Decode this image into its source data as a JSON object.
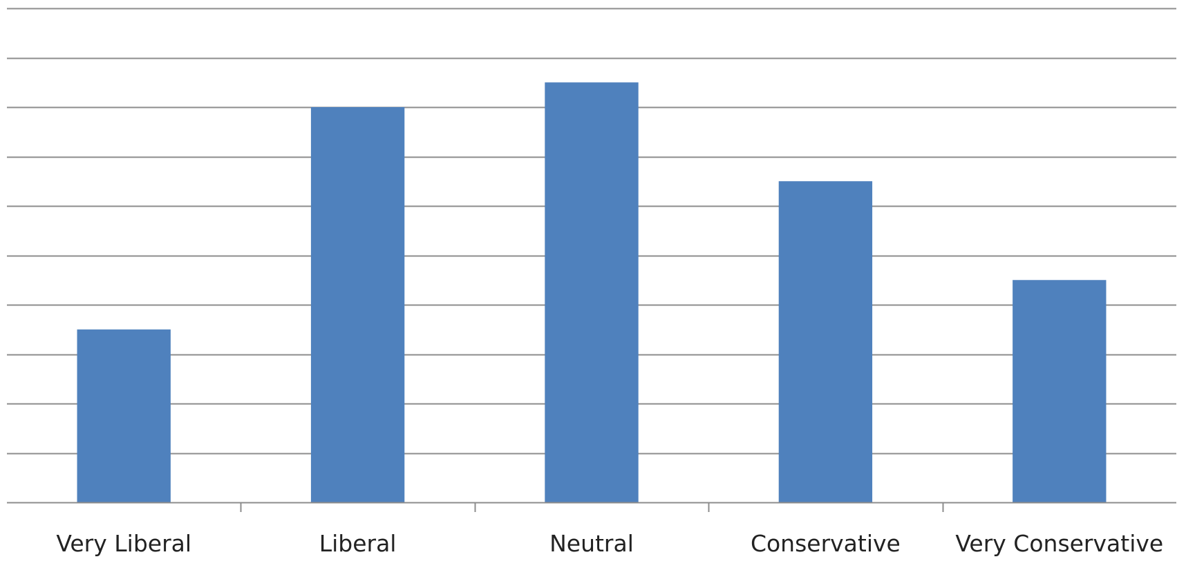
{
  "chart_data": {
    "type": "bar",
    "categories": [
      "Very Liberal",
      "Liberal",
      "Neutral",
      "Conservative",
      "Very Conservative"
    ],
    "values": [
      3.5,
      8.0,
      8.5,
      6.5,
      4.5
    ],
    "ylim": [
      0,
      10
    ],
    "grid": true,
    "legend": "none",
    "title": "",
    "xlabel": "",
    "ylabel": ""
  },
  "colors": {
    "bar": "#4f81bd",
    "grid": "#8c8c8c",
    "axis": "#8c8c8c",
    "text": "#222222"
  }
}
